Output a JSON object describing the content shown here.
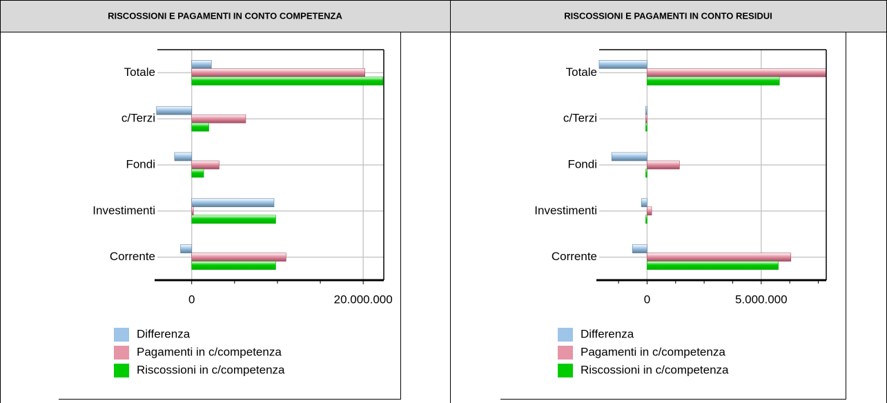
{
  "chart_data": [
    {
      "type": "hbar",
      "title": "RISCOSSIONI E PAGAMENTI IN CONTO COMPETENZA",
      "categories": [
        "Totale",
        "c/Terzi",
        "Fondi",
        "Investimenti",
        "Corrente"
      ],
      "series": [
        {
          "name": "Differenza",
          "color": "#9ec4e8",
          "bar_color": "#5d7f96",
          "values": [
            2300000,
            -4100000,
            -2000000,
            9600000,
            -1300000
          ]
        },
        {
          "name": "Pagamenti in c/competenza",
          "color": "#e595a6",
          "bar_color": "#a34a62",
          "values": [
            20200000,
            6300000,
            3200000,
            200000,
            11000000
          ]
        },
        {
          "name": "Riscossioni in c/competenza",
          "color": "#00cc00",
          "bar_color": "#00b000",
          "values": [
            22300000,
            2000000,
            1400000,
            9800000,
            9800000
          ]
        }
      ],
      "xlim": [
        -4000000,
        22400000
      ],
      "xticks": [
        0,
        {
          "value": 20000000,
          "label": "20.000.000"
        }
      ],
      "xminorticks": [
        5000000,
        10000000,
        15000000
      ],
      "grid": true
    },
    {
      "type": "hbar",
      "title": "RISCOSSIONI E PAGAMENTI IN CONTO RESIDUI",
      "categories": [
        "Totale",
        "c/Terzi",
        "Fondi",
        "Investimenti",
        "Corrente"
      ],
      "series": [
        {
          "name": "Differenza",
          "color": "#9ec4e8",
          "bar_color": "#5d7f96",
          "values": [
            -2100000,
            -60000,
            -1550000,
            -250000,
            -640000
          ]
        },
        {
          "name": "Pagamenti in c/competenza",
          "color": "#e595a6",
          "bar_color": "#a34a62",
          "values": [
            7850000,
            -60000,
            1420000,
            200000,
            6300000
          ]
        },
        {
          "name": "Riscossioni in c/competenza",
          "color": "#00cc00",
          "bar_color": "#00b000",
          "values": [
            5800000,
            -60000,
            -60000,
            -60000,
            5750000
          ]
        }
      ],
      "xlim": [
        -2100000,
        7850000
      ],
      "xticks": [
        0,
        {
          "value": 5000000,
          "label": "5.000.000"
        }
      ],
      "xminorticks": [
        -1250000,
        1250000,
        2500000,
        3750000,
        6250000,
        7500000
      ],
      "grid": true
    }
  ]
}
